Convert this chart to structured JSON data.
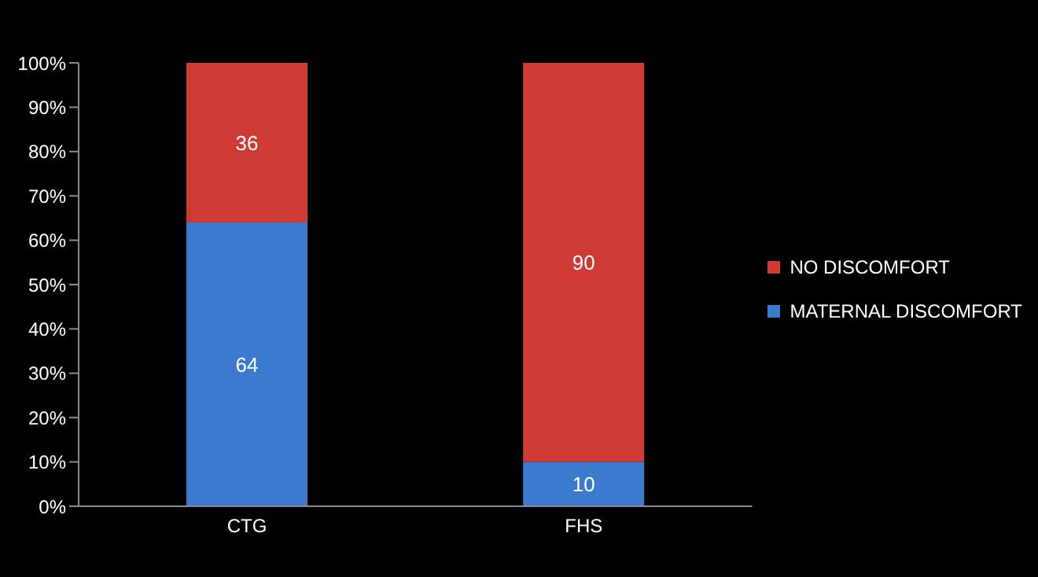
{
  "chart_data": {
    "type": "bar",
    "stacked": true,
    "categories": [
      "CTG",
      "FHS"
    ],
    "series": [
      {
        "name": "MATERNAL DISCOMFORT",
        "color": "#3a7bd0",
        "values": [
          64,
          10
        ]
      },
      {
        "name": "NO DISCOMFORT",
        "color": "#d03a35",
        "values": [
          36,
          90
        ]
      }
    ],
    "ylim": [
      0,
      100
    ],
    "yticks": [
      {
        "value": 0,
        "label": "0%"
      },
      {
        "value": 10,
        "label": "10%"
      },
      {
        "value": 20,
        "label": "20%"
      },
      {
        "value": 30,
        "label": "30%"
      },
      {
        "value": 40,
        "label": "40%"
      },
      {
        "value": 50,
        "label": "50%"
      },
      {
        "value": 60,
        "label": "60%"
      },
      {
        "value": 70,
        "label": "70%"
      },
      {
        "value": 80,
        "label": "80%"
      },
      {
        "value": 90,
        "label": "90%"
      },
      {
        "value": 100,
        "label": "100%"
      }
    ],
    "data_labels": true,
    "legend": "right",
    "grid": false
  }
}
